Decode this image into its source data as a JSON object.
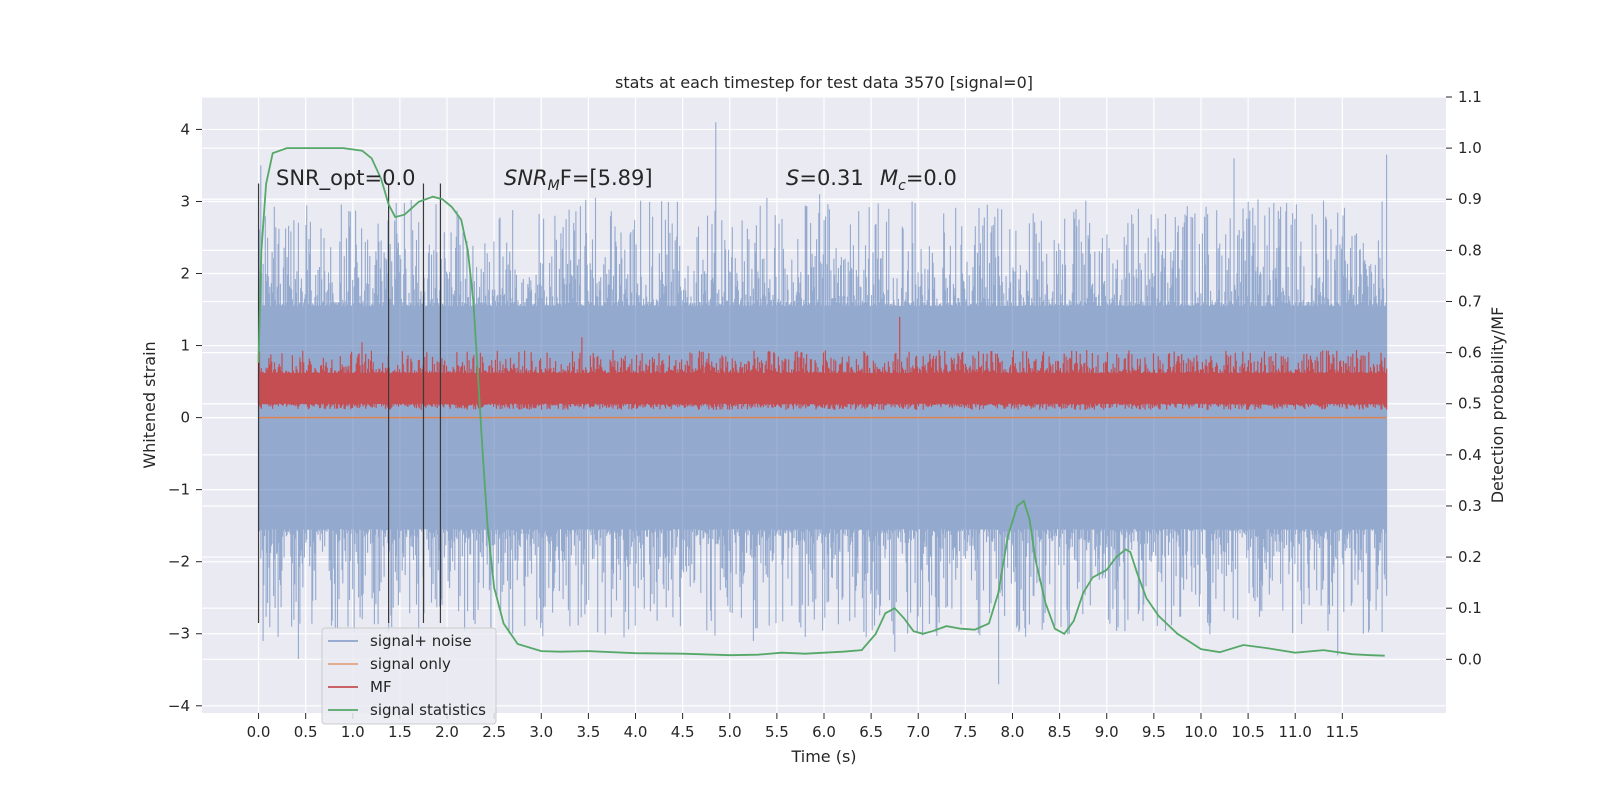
{
  "chart_data": {
    "type": "line",
    "title": "stats at each timestep for test data 3570 [signal=0]",
    "xlabel": "Time (s)",
    "ylabel": "Whitened strain",
    "y2label": "Detection probability/MF",
    "xlim": [
      -0.6,
      12.6
    ],
    "ylim": [
      -4.1,
      4.45
    ],
    "y2lim": [
      -0.105,
      1.1
    ],
    "xticks": [
      0.0,
      0.5,
      1.0,
      1.5,
      2.0,
      2.5,
      3.0,
      3.5,
      4.0,
      4.5,
      5.0,
      5.5,
      6.0,
      6.5,
      7.0,
      7.5,
      8.0,
      8.5,
      9.0,
      9.5,
      10.0,
      10.5,
      11.0,
      11.5
    ],
    "xtick_labels": [
      "0.0",
      "0.5",
      "1.0",
      "1.5",
      "2.0",
      "2.5",
      "3.0",
      "3.5",
      "4.0",
      "4.5",
      "5.0",
      "5.5",
      "6.0",
      "6.5",
      "7.0",
      "7.5",
      "8.0",
      "8.5",
      "9.0",
      "9.5",
      "10.0",
      "10.5",
      "11.0",
      "11.5"
    ],
    "yticks": [
      -4,
      -3,
      -2,
      -1,
      0,
      1,
      2,
      3,
      4
    ],
    "ytick_labels": [
      "−4",
      "−3",
      "−2",
      "−1",
      "0",
      "1",
      "2",
      "3",
      "4"
    ],
    "y2ticks": [
      0.0,
      0.1,
      0.2,
      0.3,
      0.4,
      0.5,
      0.6,
      0.7,
      0.8,
      0.9,
      1.0,
      1.1
    ],
    "y2tick_labels": [
      "0.0",
      "0.1",
      "0.2",
      "0.3",
      "0.4",
      "0.5",
      "0.6",
      "0.7",
      "0.8",
      "0.9",
      "1.0",
      "1.1"
    ],
    "grid": true,
    "legend_position": "lower-left",
    "annotations": {
      "snr_opt": "SNR_opt=0.0",
      "snr_mf_sym": "SNR",
      "snr_mf_sub": "M",
      "snr_mf_rest": "F=[5.89]",
      "s_sym": "S",
      "s_rest": "=0.31",
      "mc_sym": "M",
      "mc_sub": "c",
      "mc_rest": "=0.0"
    },
    "event_markers_x": [
      0.0,
      1.38,
      1.75,
      1.93
    ],
    "series": [
      {
        "name": "signal+ noise",
        "axis": "left",
        "color": "#4c72b0",
        "style": "dense-noise",
        "x_range": [
          0.0,
          11.97
        ],
        "typical_band": [
          -1.4,
          1.4
        ],
        "peaks": [
          [
            0.02,
            3.5
          ],
          [
            0.05,
            -3.1
          ],
          [
            0.35,
            -2.9
          ],
          [
            0.42,
            -3.35
          ],
          [
            1.7,
            -3.2
          ],
          [
            1.95,
            -2.6
          ],
          [
            2.7,
            -3.0
          ],
          [
            3.0,
            -2.85
          ],
          [
            4.85,
            4.1
          ],
          [
            5.25,
            -3.1
          ],
          [
            5.95,
            3.1
          ],
          [
            6.75,
            -3.25
          ],
          [
            7.85,
            -3.7
          ],
          [
            8.6,
            -3.0
          ],
          [
            10.35,
            3.6
          ],
          [
            11.45,
            -3.3
          ],
          [
            11.97,
            3.65
          ]
        ]
      },
      {
        "name": "signal only",
        "axis": "left",
        "color": "#dd8452",
        "x": [
          0.0,
          11.97
        ],
        "y": [
          0.0,
          0.0
        ]
      },
      {
        "name": "MF",
        "axis": "right",
        "color": "#c44e52",
        "style": "dense-noise",
        "x_range": [
          0.0,
          11.97
        ],
        "typical_band": [
          0.5,
          0.56
        ],
        "peaks": [
          [
            3.43,
            0.63
          ],
          [
            6.8,
            0.67
          ],
          [
            1.1,
            0.62
          ]
        ]
      },
      {
        "name": "signal statistics",
        "axis": "right",
        "color": "#55a868",
        "x": [
          0.0,
          0.03,
          0.08,
          0.15,
          0.3,
          0.6,
          0.9,
          1.1,
          1.2,
          1.3,
          1.38,
          1.45,
          1.55,
          1.7,
          1.85,
          1.95,
          2.05,
          2.15,
          2.22,
          2.28,
          2.33,
          2.38,
          2.43,
          2.5,
          2.6,
          2.75,
          3.0,
          3.2,
          3.5,
          4.0,
          4.5,
          5.0,
          5.3,
          5.55,
          5.8,
          6.0,
          6.2,
          6.4,
          6.55,
          6.65,
          6.75,
          6.85,
          6.95,
          7.05,
          7.15,
          7.3,
          7.45,
          7.6,
          7.75,
          7.85,
          7.95,
          8.05,
          8.12,
          8.18,
          8.25,
          8.35,
          8.45,
          8.55,
          8.65,
          8.75,
          8.85,
          9.0,
          9.1,
          9.2,
          9.25,
          9.32,
          9.42,
          9.55,
          9.75,
          10.0,
          10.2,
          10.45,
          10.7,
          11.0,
          11.3,
          11.6,
          11.8,
          11.95
        ],
        "y": [
          0.58,
          0.8,
          0.93,
          0.99,
          1.0,
          1.0,
          1.0,
          0.995,
          0.98,
          0.94,
          0.89,
          0.865,
          0.87,
          0.895,
          0.905,
          0.9,
          0.885,
          0.86,
          0.8,
          0.7,
          0.55,
          0.4,
          0.26,
          0.14,
          0.07,
          0.03,
          0.016,
          0.015,
          0.016,
          0.012,
          0.011,
          0.008,
          0.009,
          0.013,
          0.011,
          0.013,
          0.015,
          0.018,
          0.05,
          0.09,
          0.1,
          0.08,
          0.055,
          0.05,
          0.055,
          0.065,
          0.06,
          0.058,
          0.07,
          0.13,
          0.24,
          0.3,
          0.31,
          0.275,
          0.19,
          0.11,
          0.06,
          0.05,
          0.075,
          0.13,
          0.16,
          0.175,
          0.2,
          0.215,
          0.21,
          0.17,
          0.12,
          0.085,
          0.05,
          0.02,
          0.014,
          0.028,
          0.022,
          0.013,
          0.018,
          0.01,
          0.008,
          0.007
        ]
      }
    ]
  }
}
